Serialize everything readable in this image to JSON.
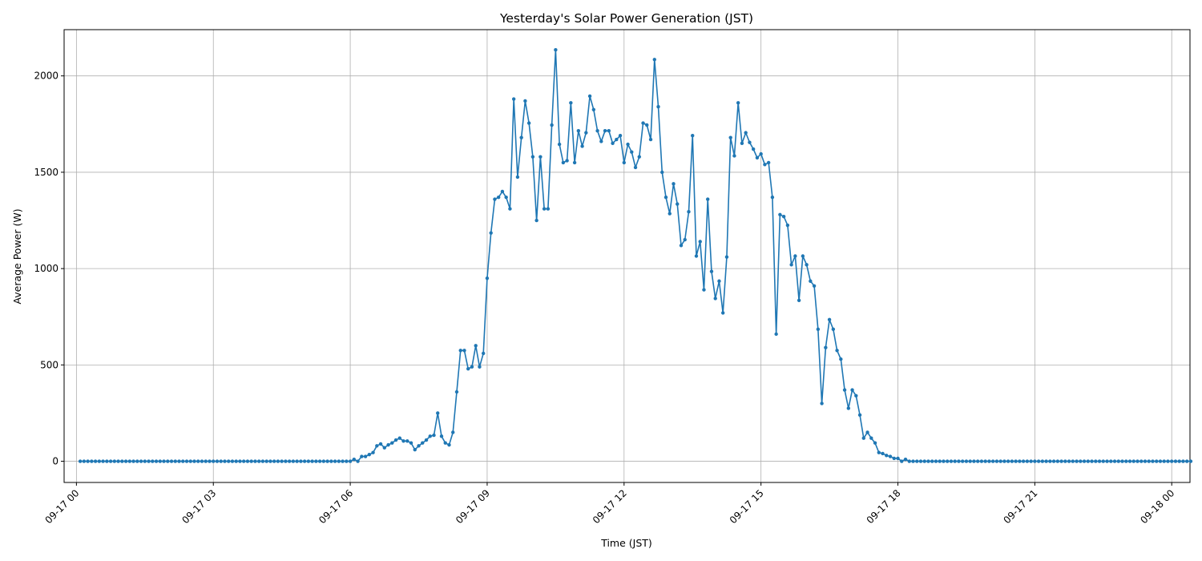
{
  "chart_data": {
    "type": "line",
    "title": "Yesterday's Solar Power Generation (JST)",
    "xlabel": "Time (JST)",
    "ylabel": "Average Power (W)",
    "x_range": [
      "09-16 23:45",
      "09-18 00:20"
    ],
    "xlim_hours": [
      -0.27,
      24.4
    ],
    "ylim": [
      -110,
      2240
    ],
    "x_ticks": [
      "09-17 00",
      "09-17 03",
      "09-17 06",
      "09-17 09",
      "09-17 12",
      "09-17 15",
      "09-17 18",
      "09-17 21",
      "09-18 00"
    ],
    "x_tick_hours": [
      0,
      3,
      6,
      9,
      12,
      15,
      18,
      21,
      24
    ],
    "y_ticks": [
      0,
      500,
      1000,
      1500,
      2000
    ],
    "y_tick_labels": [
      "0",
      "500",
      "1000",
      "1500",
      "2000"
    ],
    "grid": true,
    "legend": "none",
    "marker": "circle",
    "color": "#1f77b4",
    "interval_minutes": 5,
    "x_start_time": "09-17 00:05",
    "series": [
      {
        "values": [
          0,
          0,
          0,
          0,
          0,
          0,
          0,
          0,
          0,
          0,
          0,
          0,
          0,
          0,
          0,
          0,
          0,
          0,
          0,
          0,
          0,
          0,
          0,
          0,
          0,
          0,
          0,
          0,
          0,
          0,
          0,
          0,
          0,
          0,
          0,
          0,
          0,
          0,
          0,
          0,
          0,
          0,
          0,
          0,
          0,
          0,
          0,
          0,
          0,
          0,
          0,
          0,
          0,
          0,
          0,
          0,
          0,
          0,
          0,
          0,
          0,
          0,
          0,
          0,
          0,
          0,
          0,
          0,
          0,
          0,
          0,
          0,
          10,
          0,
          25,
          25,
          35,
          45,
          80,
          90,
          70,
          85,
          95,
          110,
          120,
          105,
          105,
          95,
          60,
          80,
          95,
          110,
          130,
          135,
          250,
          130,
          95,
          85,
          150,
          360,
          575,
          575,
          480,
          490,
          600,
          490,
          560,
          950,
          1185,
          1360,
          1370,
          1400,
          1370,
          1310,
          1880,
          1475,
          1680,
          1870,
          1755,
          1580,
          1250,
          1580,
          1310,
          1310,
          1745,
          2135,
          1645,
          1550,
          1560,
          1860,
          1550,
          1715,
          1635,
          1705,
          1895,
          1825,
          1715,
          1660,
          1715,
          1715,
          1650,
          1670,
          1690,
          1550,
          1645,
          1605,
          1525,
          1580,
          1755,
          1745,
          1670,
          2085,
          1840,
          1500,
          1370,
          1285,
          1440,
          1335,
          1120,
          1150,
          1295,
          1690,
          1065,
          1140,
          890,
          1360,
          985,
          845,
          935,
          770,
          1060,
          1680,
          1585,
          1860,
          1650,
          1705,
          1655,
          1620,
          1575,
          1595,
          1540,
          1550,
          1370,
          660,
          1280,
          1270,
          1225,
          1020,
          1065,
          835,
          1065,
          1020,
          935,
          910,
          685,
          300,
          590,
          735,
          685,
          575,
          530,
          370,
          275,
          370,
          340,
          240,
          120,
          150,
          120,
          95,
          45,
          40,
          30,
          25,
          15,
          15,
          0,
          10,
          0,
          0,
          0,
          0,
          0,
          0,
          0,
          0,
          0,
          0,
          0,
          0,
          0,
          0,
          0,
          0,
          0,
          0,
          0,
          0,
          0,
          0,
          0,
          0,
          0,
          0,
          0,
          0,
          0,
          0,
          0,
          0,
          0,
          0,
          0,
          0,
          0,
          0,
          0,
          0,
          0,
          0,
          0,
          0,
          0,
          0,
          0,
          0,
          0,
          0,
          0,
          0,
          0,
          0,
          0,
          0,
          0,
          0,
          0,
          0,
          0,
          0,
          0,
          0,
          0,
          0,
          0,
          0,
          0,
          0,
          0,
          0,
          0,
          0,
          0
        ]
      }
    ]
  }
}
